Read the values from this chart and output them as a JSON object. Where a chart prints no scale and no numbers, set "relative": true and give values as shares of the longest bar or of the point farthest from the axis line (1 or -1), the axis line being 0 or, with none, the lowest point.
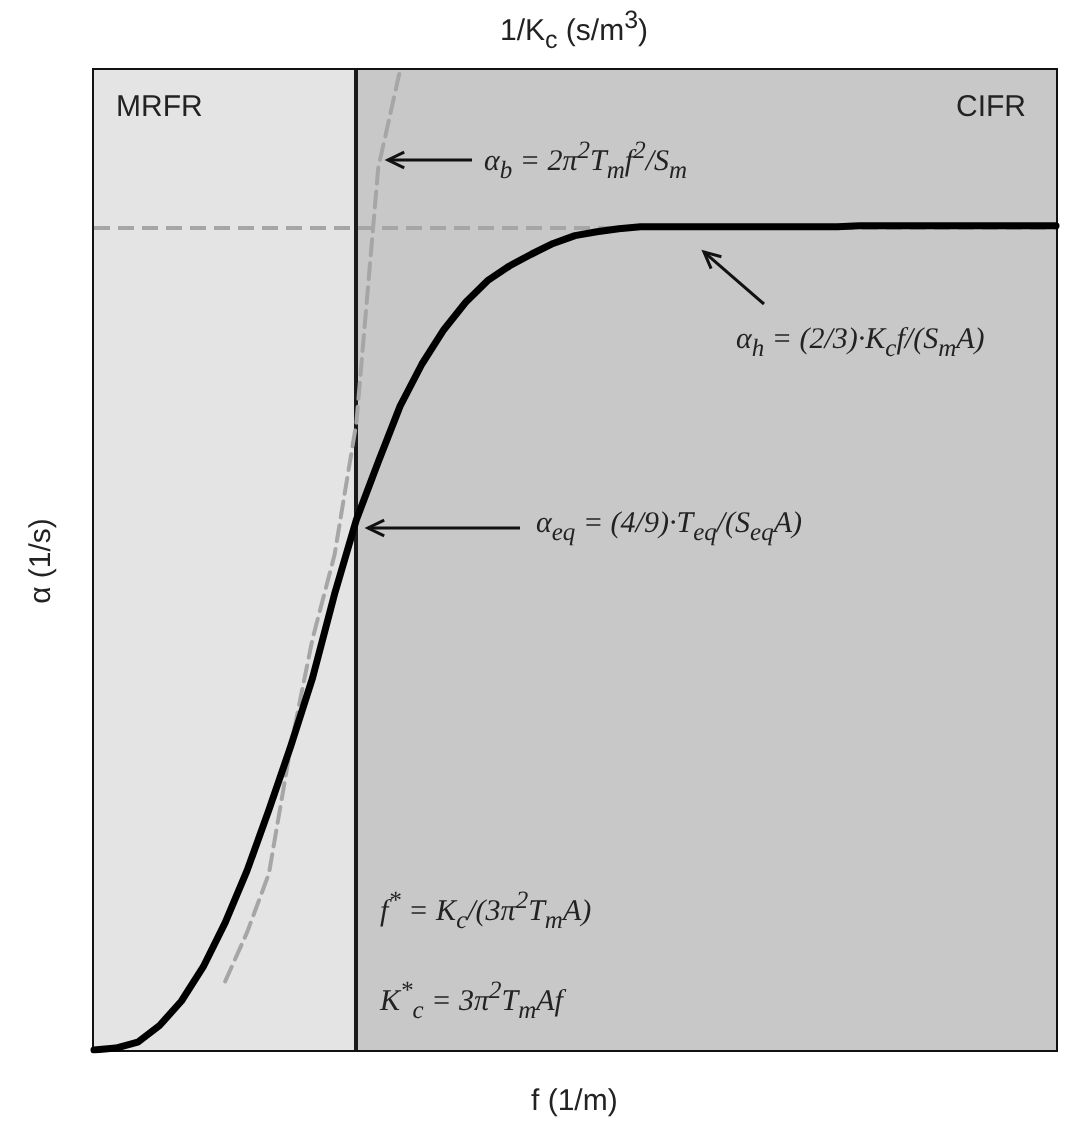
{
  "chart_data": {
    "type": "line",
    "relative": true,
    "xlabel": "f (1/m)",
    "ylabel": "α (1/s)",
    "x2label": "1/K$_{c}$ (s/m$^{3}$)",
    "categories": [
      null,
      null,
      null,
      null,
      null,
      null,
      null,
      null,
      null,
      null,
      null,
      null,
      null,
      null,
      null,
      null,
      null,
      null,
      null,
      null,
      null,
      null,
      null,
      null,
      null,
      null,
      null,
      null,
      null,
      null,
      null,
      null,
      null,
      null,
      null,
      null,
      null,
      null,
      null,
      null,
      null,
      null,
      null,
      null,
      null
    ],
    "grid": false,
    "marker": "none",
    "series": [
      {
        "color": "#000000",
        "line_style": "solid",
        "values": [
          0,
          0.002,
          0.008,
          0.025,
          0.05,
          0.085,
          0.13,
          0.183,
          0.245,
          0.31,
          0.38,
          0.465,
          0.541,
          0.6,
          0.657,
          0.7,
          0.735,
          0.763,
          0.785,
          0.8,
          0.812,
          0.823,
          0.831,
          0.835,
          0.838,
          0.84,
          0.84,
          0.84,
          0.84,
          0.84,
          0.84,
          0.84,
          0.84,
          0.84,
          0.84,
          0.841,
          0.841,
          0.841,
          0.841,
          0.841,
          0.841,
          0.841,
          0.841,
          0.841,
          0.841
        ]
      },
      {
        "color": "#a6a6a6",
        "line_style": "dashed",
        "values": [
          null,
          null,
          null,
          null,
          null,
          null,
          0.07,
          0.12,
          0.18,
          0.31,
          0.42,
          0.505,
          0.64,
          0.9,
          1,
          null,
          null,
          null,
          null,
          null,
          null,
          null,
          null,
          null,
          null,
          null,
          null,
          null,
          null,
          null,
          null,
          null,
          null,
          null,
          null,
          null,
          null,
          null,
          null,
          null,
          null,
          null,
          null,
          null,
          null
        ]
      }
    ],
    "ref_lines": [
      {
        "axis": "y",
        "value": 0.841,
        "color": "#a6a6a6",
        "line_style": "dashed"
      }
    ],
    "annotations": [
      "MRFR",
      "CIFR",
      "α$_{b}$ = 2π$^{2}$T$_{m}$f$^{2}$/S$_{m}$",
      "α$_{h}$ = (2/3)·K$_{c}$f/(S$_{m}$A)",
      "α$_{eq}$ = (4/9)·T$_{eq}$/(S$_{eq}$A)",
      "f$^{*}$ = K$_{c}$/(3π$^{2}$T$_{m}$A)",
      "K$^{*}$$_{c}$ = 3π$^{2}$T$_{m}$Af"
    ]
  }
}
